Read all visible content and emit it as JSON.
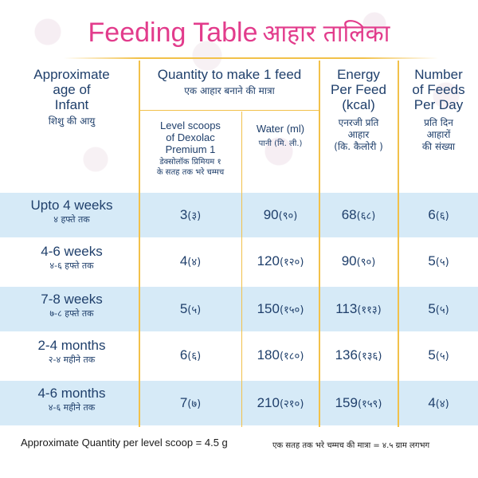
{
  "title": {
    "en": "Feeding Table",
    "hi": "आहार तालिका"
  },
  "headers": {
    "age": {
      "en": [
        "Approximate",
        "age of",
        "Infant"
      ],
      "hi": "शिशु की आयु"
    },
    "quantity": {
      "en": "Quantity to make 1 feed",
      "hi": "एक आहार बनाने की मात्रा"
    },
    "scoops": {
      "en": [
        "Level scoops",
        "of Dexolac",
        "Premium 1"
      ],
      "hi": [
        "डेक्सोलॉक प्रिमियम १",
        "के सतह तक भरे चम्मच"
      ]
    },
    "water": {
      "en": "Water (ml)",
      "hi": "पानी (मि. ली.)"
    },
    "energy": {
      "en": [
        "Energy",
        "Per Feed",
        "(kcal)"
      ],
      "hi": [
        "एनरजी प्रति",
        "आहार",
        "(कि. कैलोरी )"
      ]
    },
    "feeds": {
      "en": [
        "Number",
        "of Feeds",
        "Per Day"
      ],
      "hi": [
        "प्रति दिन",
        "आहारों",
        "की संख्या"
      ]
    }
  },
  "rows": [
    {
      "age_en": "Upto 4 weeks",
      "age_hi": "४ हफ्ते तक",
      "scoops": "3",
      "scoops_hi": "(३)",
      "water": "90",
      "water_hi": "(९०)",
      "energy": "68",
      "energy_hi": "(६८)",
      "feeds": "6",
      "feeds_hi": "(६)"
    },
    {
      "age_en": "4-6 weeks",
      "age_hi": "४-६ हफ्ते तक",
      "scoops": "4",
      "scoops_hi": "(४)",
      "water": "120",
      "water_hi": "(१२०)",
      "energy": "90",
      "energy_hi": "(९०)",
      "feeds": "5",
      "feeds_hi": "(५)"
    },
    {
      "age_en": "7-8 weeks",
      "age_hi": "७-८ हफ्ते तक",
      "scoops": "5",
      "scoops_hi": "(५)",
      "water": "150",
      "water_hi": "(१५०)",
      "energy": "113",
      "energy_hi": "(११३)",
      "feeds": "5",
      "feeds_hi": "(५)"
    },
    {
      "age_en": "2-4 months",
      "age_hi": "२-४ महीने तक",
      "scoops": "6",
      "scoops_hi": "(६)",
      "water": "180",
      "water_hi": "(१८०)",
      "energy": "136",
      "energy_hi": "(१३६)",
      "feeds": "5",
      "feeds_hi": "(५)"
    },
    {
      "age_en": "4-6 months",
      "age_hi": "४-६ महीने तक",
      "scoops": "7",
      "scoops_hi": "(७)",
      "water": "210",
      "water_hi": "(२१०)",
      "energy": "159",
      "energy_hi": "(१५९)",
      "feeds": "4",
      "feeds_hi": "(४)"
    }
  ],
  "footer": {
    "en": "Approximate Quantity per level scoop = 4.5 g",
    "hi": "एक सतह तक भरे चम्मच की मात्रा = ४.५ ग्राम लगभग"
  },
  "colors": {
    "title": "#e23c8c",
    "text": "#1f3f6b",
    "band": "#d6eaf7",
    "rule": "#f2c14a"
  }
}
